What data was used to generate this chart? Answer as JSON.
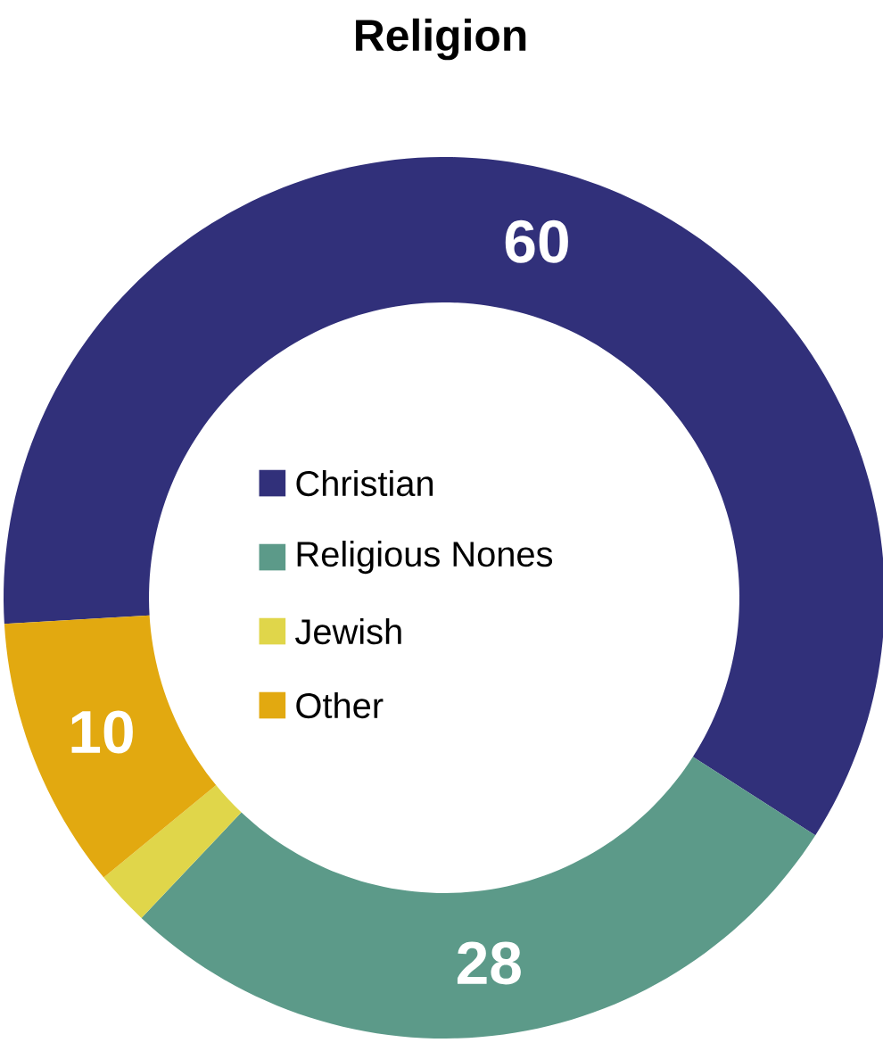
{
  "chart_data": {
    "type": "donut",
    "title": "Religion",
    "categories": [
      "Christian",
      "Religious Nones",
      "Jewish",
      "Other"
    ],
    "values": [
      60,
      28,
      2,
      10
    ],
    "colors": [
      "#31307a",
      "#5c9a89",
      "#e0d64a",
      "#e2a910"
    ],
    "value_labels": [
      "60",
      "28",
      null,
      "10"
    ],
    "legend": "center"
  }
}
